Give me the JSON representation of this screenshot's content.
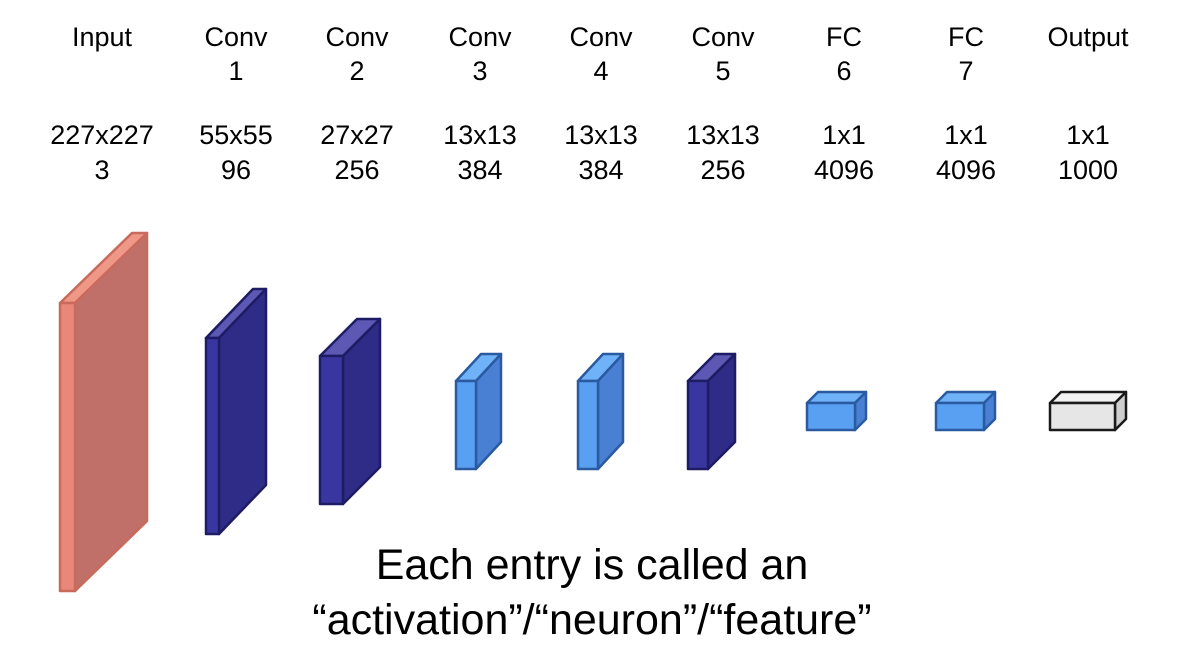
{
  "layers": [
    {
      "name": [
        "Input"
      ],
      "size": "227x227",
      "depth": "3",
      "color": "salmon"
    },
    {
      "name": [
        "Conv",
        "1"
      ],
      "size": "55x55",
      "depth": "96",
      "color": "navy"
    },
    {
      "name": [
        "Conv",
        "2"
      ],
      "size": "27x27",
      "depth": "256",
      "color": "navy"
    },
    {
      "name": [
        "Conv",
        "3"
      ],
      "size": "13x13",
      "depth": "384",
      "color": "blue"
    },
    {
      "name": [
        "Conv",
        "4"
      ],
      "size": "13x13",
      "depth": "384",
      "color": "blue"
    },
    {
      "name": [
        "Conv",
        "5"
      ],
      "size": "13x13",
      "depth": "256",
      "color": "navy"
    },
    {
      "name": [
        "FC",
        "6"
      ],
      "size": "1x1",
      "depth": "4096",
      "color": "blue"
    },
    {
      "name": [
        "FC",
        "7"
      ],
      "size": "1x1",
      "depth": "4096",
      "color": "blue"
    },
    {
      "name": [
        "Output"
      ],
      "size": "1x1",
      "depth": "1000",
      "color": "gray"
    }
  ],
  "palette": {
    "salmon": {
      "front": "#e8877a",
      "side": "#c07068",
      "top": "#f09888",
      "stroke": "#c86a5c"
    },
    "navy": {
      "front": "#3a36a0",
      "side": "#2e2c86",
      "top": "#5c58b4",
      "stroke": "#1e1c64"
    },
    "blue": {
      "front": "#5aa0f2",
      "side": "#4a80d4",
      "top": "#70b2f8",
      "stroke": "#2a5aa0"
    },
    "gray": {
      "front": "#e6e6e6",
      "side": "#cfcfcf",
      "top": "#f2f2f2",
      "stroke": "#1a1a1a"
    }
  },
  "caption": {
    "line1": "Each entry is called an",
    "line2": "“activation”/“neuron”/“feature”"
  }
}
